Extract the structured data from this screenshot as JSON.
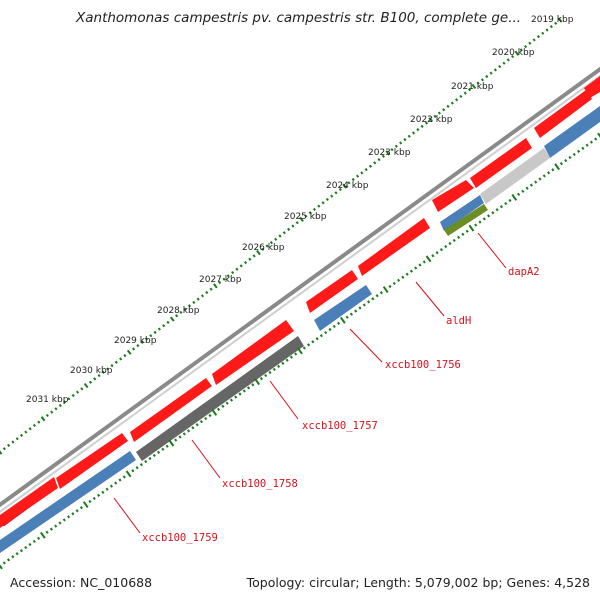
{
  "title": "Xanthomonas campestris pv. campestris str. B100, complete ge...",
  "footer": {
    "accession": "Accession: NC_010688",
    "summary": "Topology: circular; Length: 5,079,002 bp; Genes: 4,528"
  },
  "ticks": [
    "2019 kbp",
    "2020 kbp",
    "2021 kbp",
    "2022 kbp",
    "2023 kbp",
    "2024 kbp",
    "2025 kbp",
    "2026 kbp",
    "2027 kbp",
    "2028 kbp",
    "2029 kbp",
    "2030 kbp",
    "2031 kbp"
  ],
  "gene_labels": [
    "dapA2",
    "aldH",
    "xccb100_1756",
    "xccb100_1757",
    "xccb100_1758",
    "xccb100_1759"
  ],
  "colors": {
    "backbone": "#8a8a8a",
    "gene": "#ff1a1a",
    "cds": "#4a7fb8",
    "pseudo": "#666666",
    "light": "#c8c8c8",
    "other": "#6b8e23",
    "axis": "#1a7a1a",
    "label": "#d8121e"
  }
}
